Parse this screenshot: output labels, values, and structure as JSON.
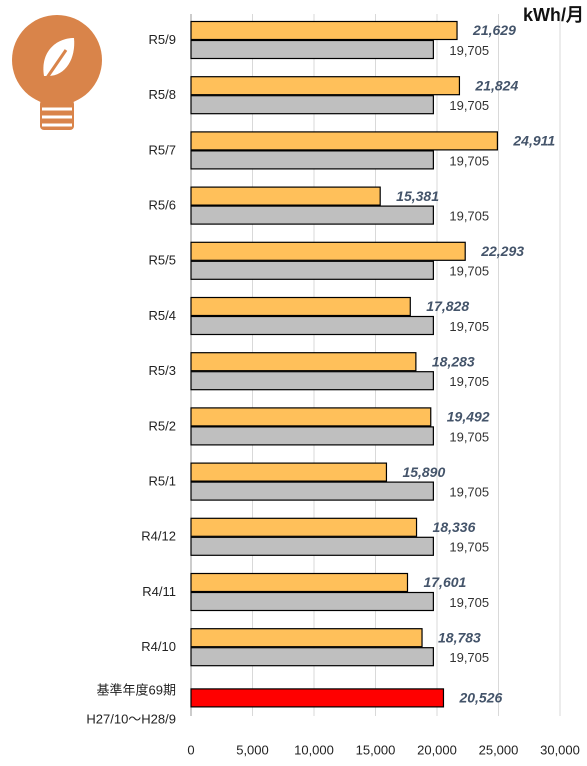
{
  "chart_data": {
    "type": "bar",
    "orientation": "horizontal",
    "unit": "kWh/月",
    "categories": [
      "R5/9",
      "R5/8",
      "R5/7",
      "R5/6",
      "R5/5",
      "R5/4",
      "R5/3",
      "R5/2",
      "R5/1",
      "R4/12",
      "R4/11",
      "R4/10",
      "基準年度69期"
    ],
    "base_period": "H27/10～H28/9",
    "series": [
      {
        "color": "#ffc05a",
        "values": [
          21629,
          21824,
          24911,
          15381,
          22293,
          17828,
          18283,
          19492,
          15890,
          18336,
          17601,
          18783,
          null
        ],
        "value_labels": [
          "21,629",
          "21,824",
          "24,911",
          "15,381",
          "22,293",
          "17,828",
          "18,283",
          "19,492",
          "15,890",
          "18,336",
          "17,601",
          "18,783",
          null
        ]
      },
      {
        "color": "#bfbfbf",
        "values": [
          19705,
          19705,
          19705,
          19705,
          19705,
          19705,
          19705,
          19705,
          19705,
          19705,
          19705,
          19705,
          null
        ],
        "value_labels": [
          "19,705",
          "19,705",
          "19,705",
          "19,705",
          "19,705",
          "19,705",
          "19,705",
          "19,705",
          "19,705",
          "19,705",
          "19,705",
          "19,705",
          null
        ]
      },
      {
        "color": "#ff0000",
        "values": [
          null,
          null,
          null,
          null,
          null,
          null,
          null,
          null,
          null,
          null,
          null,
          null,
          20526
        ],
        "value_labels": [
          null,
          null,
          null,
          null,
          null,
          null,
          null,
          null,
          null,
          null,
          null,
          null,
          "20,526"
        ]
      }
    ],
    "xlim": [
      0,
      30000
    ],
    "xticks": [
      0,
      {
        "value": 5000,
        "label": "5,000"
      },
      {
        "value": 10000,
        "label": "10,000"
      },
      {
        "value": 15000,
        "label": "15,000"
      },
      {
        "value": 20000,
        "label": "20,000"
      },
      {
        "value": 25000,
        "label": "25,000"
      },
      {
        "value": 30000,
        "label": "30,000"
      }
    ],
    "grid": true
  }
}
